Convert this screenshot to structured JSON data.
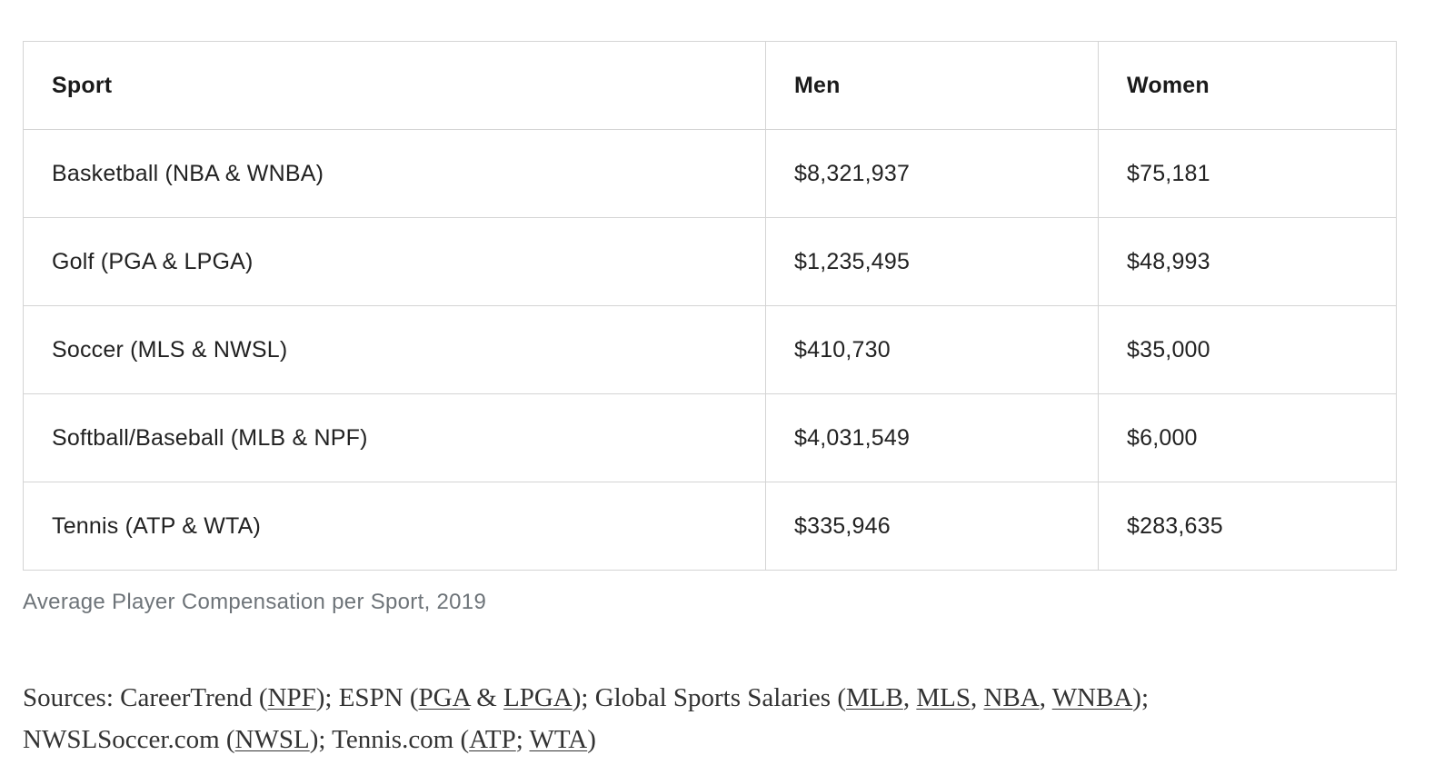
{
  "table": {
    "headers": [
      "Sport",
      "Men",
      "Women"
    ],
    "rows": [
      [
        "Basketball (NBA & WNBA)",
        "$8,321,937",
        "$75,181"
      ],
      [
        "Golf (PGA & LPGA)",
        "$1,235,495",
        "$48,993"
      ],
      [
        "Soccer (MLS & NWSL)",
        "$410,730",
        "$35,000"
      ],
      [
        "Softball/Baseball (MLB & NPF)",
        "$4,031,549",
        "$6,000"
      ],
      [
        "Tennis (ATP & WTA)",
        "$335,946",
        "$283,635"
      ]
    ]
  },
  "caption": "Average Player Compensation per Sport, 2019",
  "sources": {
    "prefix": "Sources: CareerTrend (",
    "npf": "NPF",
    "t1": "); ESPN (",
    "pga": "PGA",
    "t2": " & ",
    "lpga": "LPGA",
    "t3": "); Global Sports Salaries (",
    "mlb": "MLB",
    "t4": ", ",
    "mls": "MLS",
    "t5": ", ",
    "nba": "NBA",
    "t6": ", ",
    "wnba": "WNBA",
    "t7": ");",
    "nwslsoccer": "NWSLSoccer.com (",
    "nwsl": "NWSL",
    "t8": "); Tennis.com (",
    "atp": "ATP",
    "t9": "; ",
    "wta": "WTA",
    "t10": ")"
  }
}
